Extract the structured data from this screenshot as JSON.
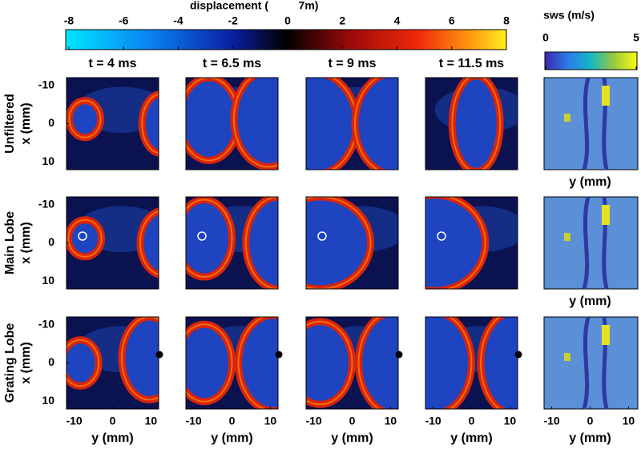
{
  "colorbar": {
    "title": "displacement (",
    "unit": "7m)",
    "lim": [
      -8,
      8
    ],
    "ticks": [
      -8,
      -6,
      -4,
      -2,
      0,
      2,
      4,
      6,
      8
    ]
  },
  "sws_colorbar": {
    "title": "sws (m/s)",
    "lim": [
      0,
      5
    ],
    "ticks": [
      0,
      5
    ]
  },
  "columns": [
    "t = 4 ms",
    "t = 6.5 ms",
    "t = 9 ms",
    "t = 11.5 ms"
  ],
  "rows": [
    "Unfiltered",
    "Main Lobe",
    "Grating Lobe"
  ],
  "y_axis": {
    "label": "x (mm)",
    "lim": [
      -12,
      12
    ],
    "ticks": [
      -10,
      0,
      10
    ]
  },
  "x_axis": {
    "label": "y (mm)",
    "lim": [
      -12,
      12
    ],
    "ticks": [
      -10,
      0,
      10
    ]
  }
}
